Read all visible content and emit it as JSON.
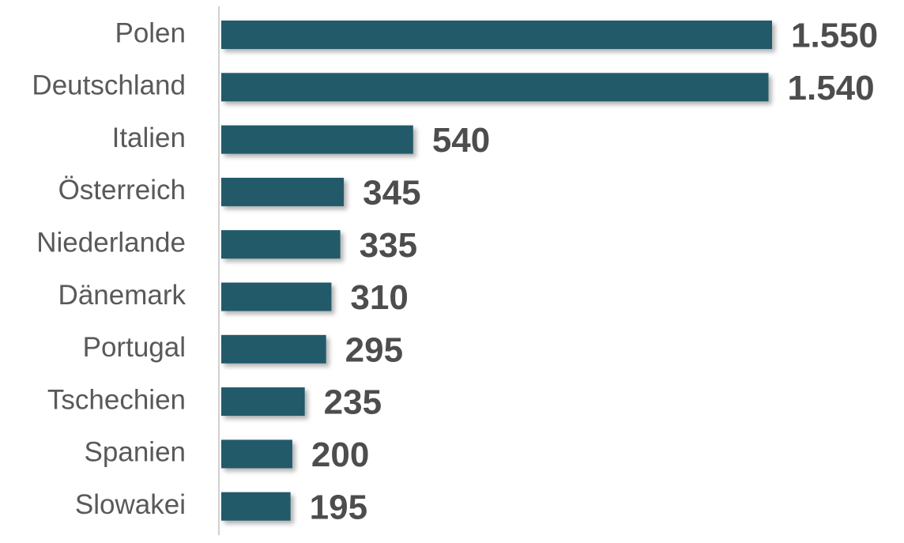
{
  "chart_data": {
    "type": "bar",
    "orientation": "horizontal",
    "categories": [
      "Polen",
      "Deutschland",
      "Italien",
      "Österreich",
      "Niederlande",
      "Dänemark",
      "Portugal",
      "Tschechien",
      "Spanien",
      "Slowakei"
    ],
    "values": [
      1550,
      1540,
      540,
      345,
      335,
      310,
      295,
      235,
      200,
      195
    ],
    "value_labels": [
      "1.550",
      "1.540",
      "540",
      "345",
      "335",
      "310",
      "295",
      "235",
      "200",
      "195"
    ],
    "color": "#245a6a"
  }
}
